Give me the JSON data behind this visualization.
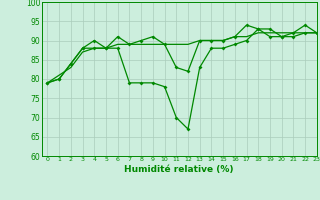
{
  "xlabel": "Humidité relative (%)",
  "xlim": [
    -0.5,
    23
  ],
  "ylim": [
    60,
    100
  ],
  "yticks": [
    60,
    65,
    70,
    75,
    80,
    85,
    90,
    95,
    100
  ],
  "xticks": [
    0,
    1,
    2,
    3,
    4,
    5,
    6,
    7,
    8,
    9,
    10,
    11,
    12,
    13,
    14,
    15,
    16,
    17,
    18,
    19,
    20,
    21,
    22,
    23
  ],
  "background_color": "#cceedd",
  "grid_color": "#aaccbb",
  "line_color": "#008800",
  "line1_x": [
    0,
    1,
    2,
    3,
    4,
    5,
    6,
    7,
    8,
    9,
    10,
    11,
    12,
    13,
    14,
    15,
    16,
    17,
    18,
    19,
    20,
    21,
    22,
    23
  ],
  "line1_y": [
    79,
    80,
    84,
    88,
    90,
    88,
    91,
    89,
    90,
    91,
    89,
    83,
    82,
    90,
    90,
    90,
    91,
    94,
    93,
    91,
    91,
    92,
    94,
    92
  ],
  "line2_x": [
    0,
    1,
    2,
    3,
    4,
    5,
    6,
    7,
    8,
    9,
    10,
    11,
    12,
    13,
    14,
    15,
    16,
    17,
    18,
    19,
    20,
    21,
    22,
    23
  ],
  "line2_y": [
    79,
    80,
    84,
    88,
    88,
    88,
    88,
    79,
    79,
    79,
    78,
    70,
    67,
    83,
    88,
    88,
    89,
    90,
    93,
    93,
    91,
    91,
    92,
    92
  ],
  "line3_x": [
    0,
    1,
    2,
    3,
    4,
    5,
    6,
    7,
    8,
    9,
    10,
    11,
    12,
    13,
    14,
    15,
    16,
    17,
    18,
    19,
    20,
    21,
    22,
    23
  ],
  "line3_y": [
    79,
    81,
    83,
    87,
    88,
    88,
    89,
    89,
    89,
    89,
    89,
    89,
    89,
    90,
    90,
    90,
    91,
    91,
    92,
    92,
    92,
    92,
    92,
    92
  ]
}
